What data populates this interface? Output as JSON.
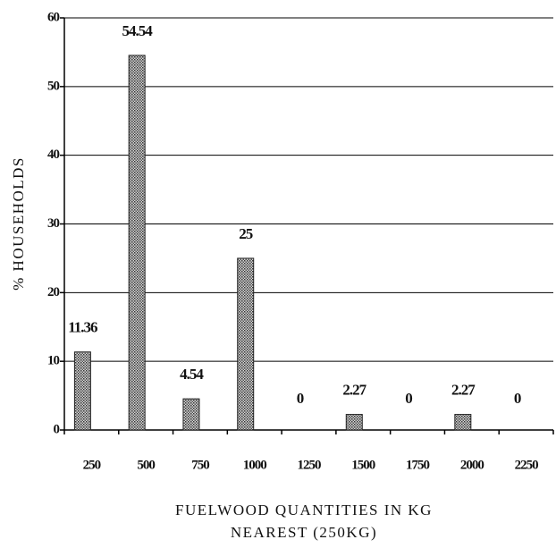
{
  "chart_data": {
    "type": "bar",
    "y_label": "% HOUSEHOLDS",
    "x_label": [
      "FUELWOOD QUANTITIES IN  KG",
      "NEAREST (250KG)"
    ],
    "categories": [
      "250",
      "500",
      "750",
      "1000",
      "1250",
      "1500",
      "1750",
      "2000",
      "2250"
    ],
    "values": [
      11.36,
      54.54,
      4.54,
      25,
      0,
      2.27,
      0,
      2.27,
      0
    ],
    "color": "#9a9a9a",
    "ylim": [
      0,
      60
    ],
    "yticks": [
      0,
      10,
      20,
      30,
      40,
      50,
      60
    ],
    "grid": true
  }
}
